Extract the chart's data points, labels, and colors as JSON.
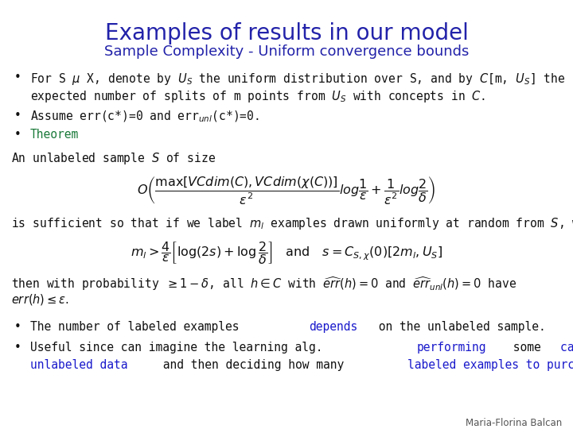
{
  "title": "Examples of results in our model",
  "subtitle": "Sample Complexity - Uniform convergence bounds",
  "title_color": "#2222aa",
  "subtitle_color": "#2222aa",
  "background_color": "#ffffff",
  "body_color": "#111111",
  "blue_color": "#1a1acc",
  "theorem_color": "#1a7a3a",
  "attribution": "Maria-Florina Balcan",
  "attribution_color": "#555555"
}
